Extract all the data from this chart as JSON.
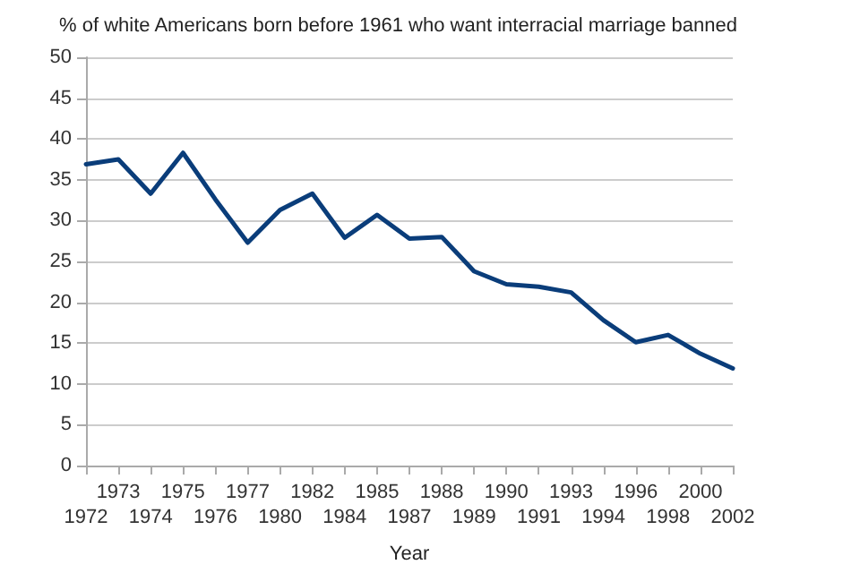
{
  "chart_data": {
    "type": "line",
    "title": "% of white Americans born before 1961 who want interracial marriage banned",
    "xlabel": "Year",
    "categories": [
      "1972",
      "1973",
      "1974",
      "1975",
      "1976",
      "1977",
      "1980",
      "1982",
      "1984",
      "1985",
      "1987",
      "1988",
      "1989",
      "1990",
      "1991",
      "1993",
      "1994",
      "1996",
      "1998",
      "2000",
      "2002"
    ],
    "series": [
      {
        "color": "#0a3d7a",
        "values": [
          36.9,
          37.5,
          33.3,
          38.3,
          32.6,
          27.3,
          31.3,
          33.3,
          27.9,
          30.7,
          27.8,
          28.0,
          23.8,
          22.2,
          21.9,
          21.2,
          17.8,
          15.1,
          16.0,
          13.7,
          11.9
        ]
      }
    ],
    "ylim": [
      0,
      50
    ],
    "yticks": [
      0,
      5,
      10,
      15,
      20,
      25,
      30,
      35,
      40,
      45,
      50
    ],
    "grid": "y",
    "marker": "none",
    "line_style": "solid"
  }
}
